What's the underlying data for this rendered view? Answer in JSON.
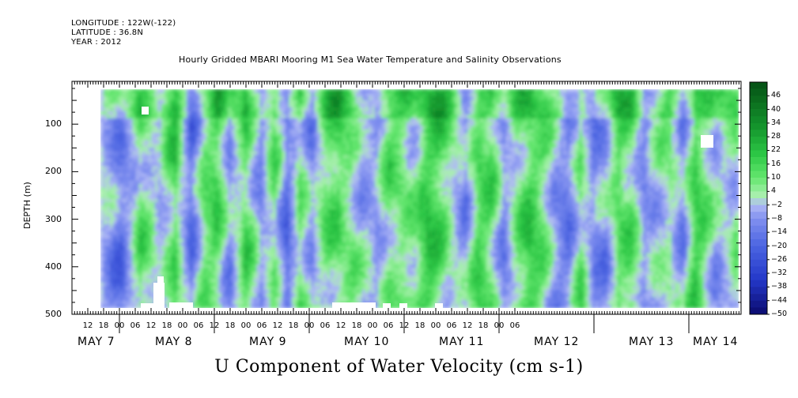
{
  "header": {
    "longitude": "LONGITUDE : 122W(-122)",
    "latitude": "LATITUDE : 36.8N",
    "year": "YEAR : 2012",
    "title": "Hourly Gridded MBARI Mooring M1 Sea Water Temperature and Salinity Observations"
  },
  "footer": {
    "title": "U Component of Water Velocity (cm s-1)"
  },
  "chart_data": {
    "type": "heatmap",
    "title": "Hourly Gridded MBARI Mooring M1 Sea Water Temperature and Salinity Observations",
    "xlabel": "",
    "ylabel": "DEPTH (m)",
    "variable": "U Component of Water Velocity (cm s-1)",
    "y_ticks": [
      "100",
      "200",
      "300",
      "400",
      "500"
    ],
    "y_range": [
      10,
      500
    ],
    "y_reversed": true,
    "x_hour_ticks": [
      "12",
      "18",
      "00",
      "06",
      "12",
      "18",
      "00",
      "06",
      "12",
      "18",
      "00",
      "06",
      "12",
      "18",
      "00",
      "06",
      "12",
      "18",
      "00",
      "06",
      "12",
      "18",
      "00",
      "06",
      "12",
      "18",
      "00",
      "06"
    ],
    "x_day_labels": [
      "MAY  7",
      "MAY  8",
      "MAY  9",
      "MAY 10",
      "MAY 11",
      "MAY 12",
      "MAY 13",
      "MAY 14"
    ],
    "colorbar_labels": [
      "46",
      "40",
      "34",
      "28",
      "22",
      "16",
      "10",
      "4",
      "-2",
      "-8",
      "-14",
      "-20",
      "-26",
      "-32",
      "-38",
      "-44",
      "-50"
    ],
    "colorbar_range": [
      -50,
      52
    ],
    "colors": {
      "deep_blue": "#0a0f7a",
      "mid_blue": "#5a6fe0",
      "light_blue": "#a6b0f5",
      "pale_green": "#a9f5b0",
      "mid_green": "#3be04a",
      "deep_green": "#0b5b17"
    }
  }
}
